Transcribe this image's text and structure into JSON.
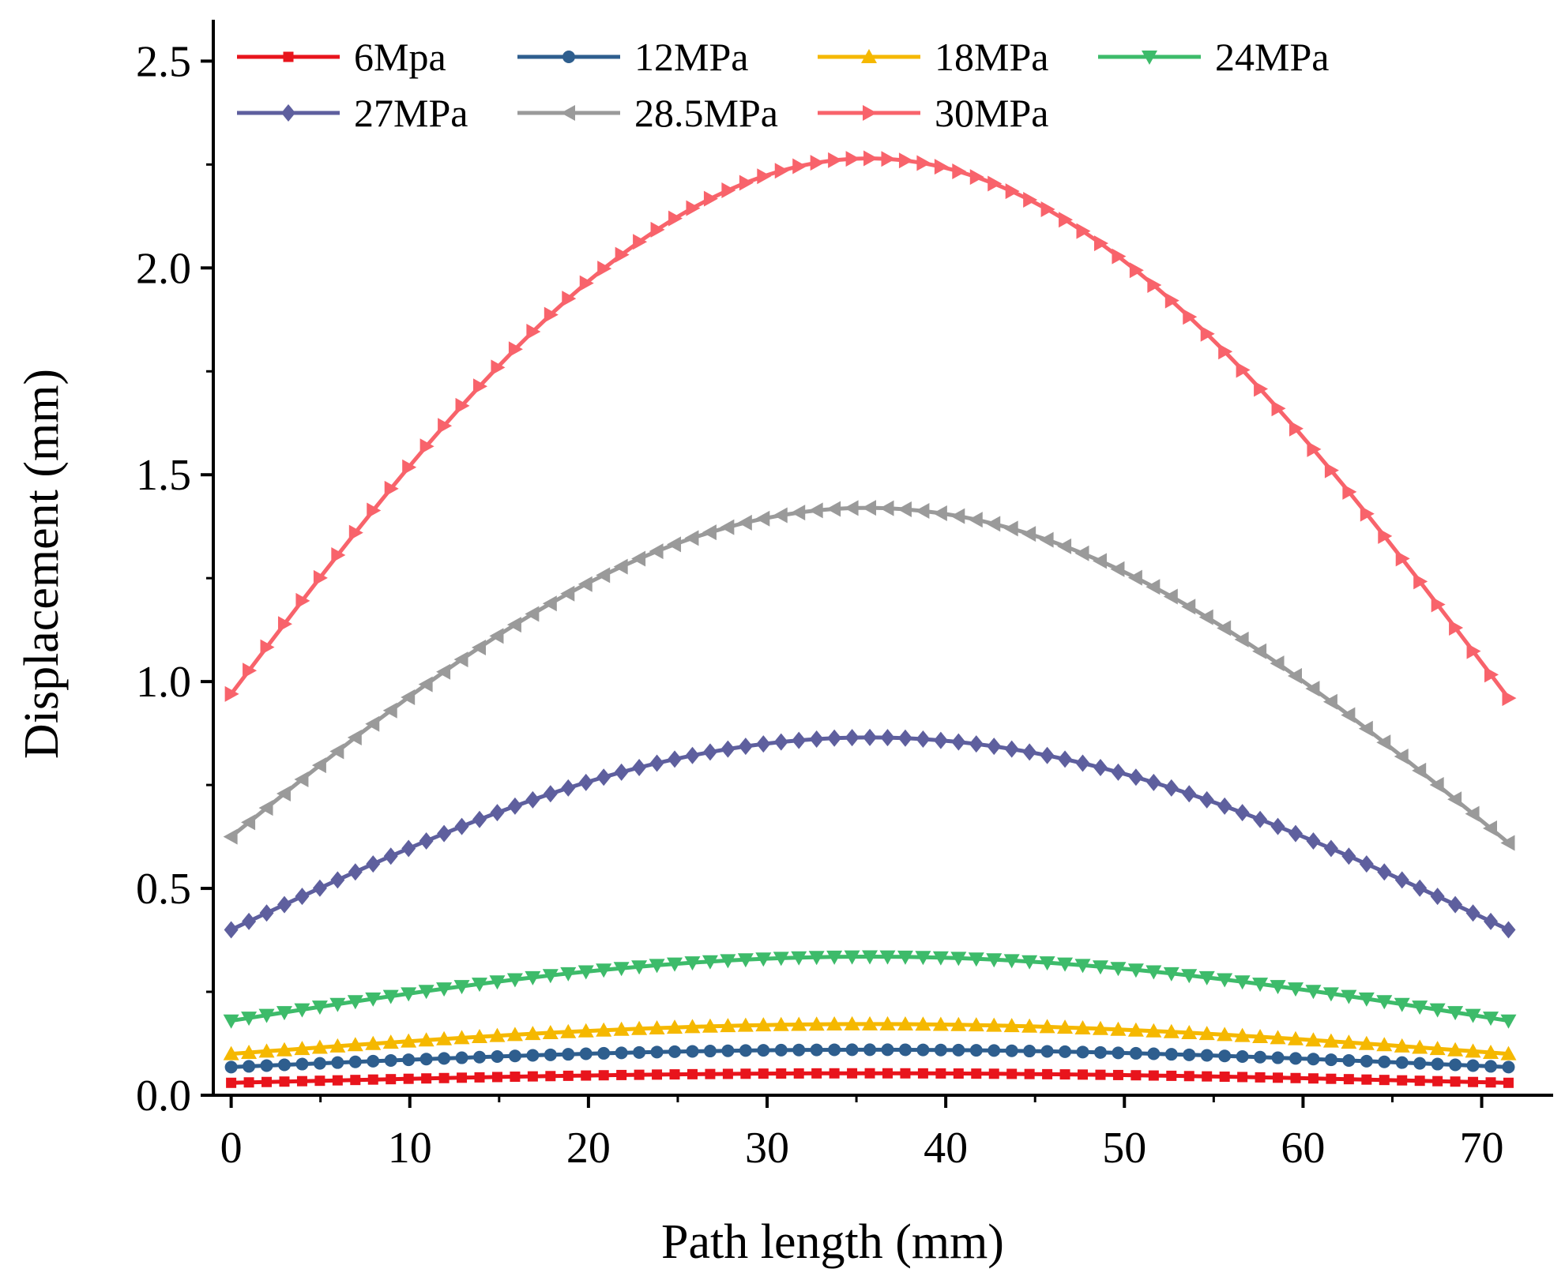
{
  "chart_data": {
    "type": "line",
    "title": "",
    "xlabel": "Path length (mm)",
    "ylabel": "Displacement (mm)",
    "xlim": [
      -1,
      74
    ],
    "ylim": [
      0,
      2.6
    ],
    "x_ticks": [
      0,
      10,
      20,
      30,
      40,
      50,
      60,
      70
    ],
    "y_ticks": [
      0.0,
      0.5,
      1.0,
      1.5,
      2.0,
      2.5
    ],
    "x_tick_labels": [
      "0",
      "10",
      "20",
      "30",
      "40",
      "50",
      "60",
      "70"
    ],
    "y_tick_labels": [
      "0.0",
      "0.5",
      "1.0",
      "1.5",
      "2.0",
      "2.5"
    ],
    "grid": false,
    "legend_position": "top, two rows",
    "x_range": [
      0,
      71.5
    ],
    "points_per_series": 73,
    "series": [
      {
        "name": "6Mpa",
        "color": "#e8141c",
        "marker": "square",
        "start": 0.03,
        "peak": 0.053,
        "end": 0.03
      },
      {
        "name": "12MPa",
        "color": "#2e5e8e",
        "marker": "circle",
        "start": 0.068,
        "peak": 0.11,
        "end": 0.068
      },
      {
        "name": "18MPa",
        "color": "#f5b800",
        "marker": "triangle-up",
        "start": 0.1,
        "peak": 0.172,
        "end": 0.1
      },
      {
        "name": "24MPa",
        "color": "#3dbb6a",
        "marker": "triangle-down",
        "start": 0.18,
        "peak": 0.335,
        "end": 0.18
      },
      {
        "name": "27MPa",
        "color": "#5e5f9e",
        "marker": "diamond",
        "start": 0.4,
        "peak": 0.865,
        "end": 0.4
      },
      {
        "name": "28.5MPa",
        "color": "#9a9a9a",
        "marker": "triangle-left",
        "start": 0.625,
        "peak": 1.42,
        "end": 0.61
      },
      {
        "name": "30MPa",
        "color": "#f8636b",
        "marker": "triangle-right",
        "start": 0.97,
        "peak": 2.265,
        "end": 0.96
      }
    ]
  }
}
